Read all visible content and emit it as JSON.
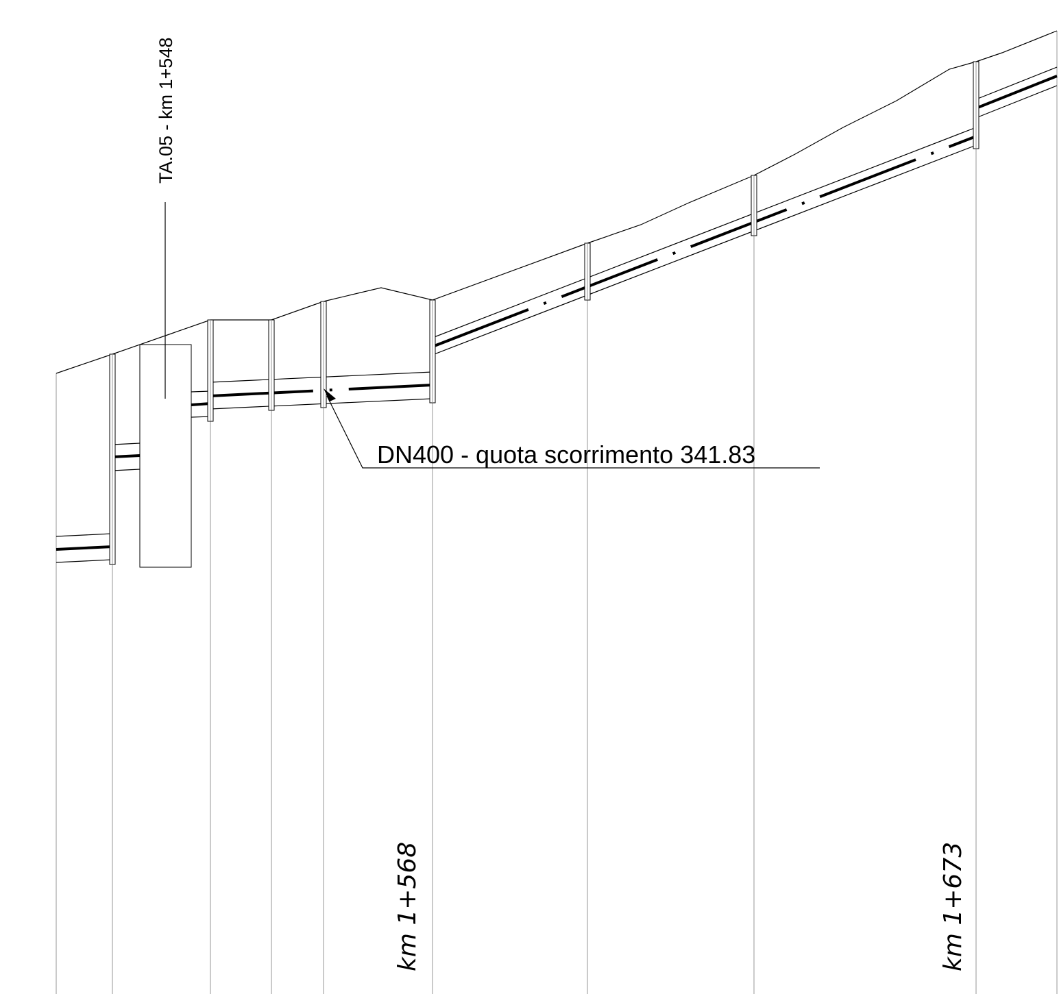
{
  "labels": {
    "station_top": "TA.05 - km 1+548",
    "pipe_note": "DN400 - quota scorrimento 341.83",
    "km_left": "km 1+568",
    "km_right": "km 1+673"
  },
  "colors": {
    "line": "#000000",
    "grid": "#8a8a8a",
    "background": "#ffffff"
  }
}
